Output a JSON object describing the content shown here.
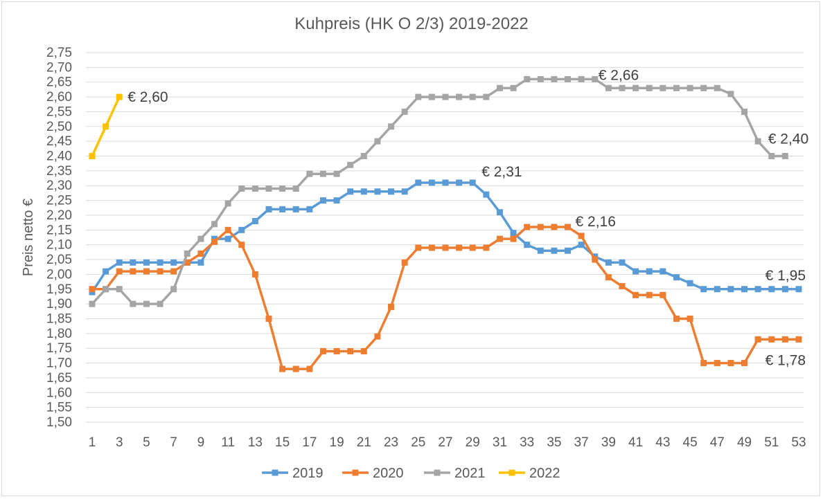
{
  "chart_data": {
    "type": "line",
    "title": "Kuhpreis (HK O 2/3) 2019-2022",
    "xlabel": "",
    "ylabel": "Preis netto €",
    "xlim": [
      1,
      53
    ],
    "ylim": [
      1.5,
      2.75
    ],
    "x_tick_labels": [
      "1",
      "3",
      "5",
      "7",
      "9",
      "11",
      "13",
      "15",
      "17",
      "19",
      "21",
      "23",
      "25",
      "27",
      "29",
      "31",
      "33",
      "35",
      "37",
      "39",
      "41",
      "43",
      "45",
      "47",
      "49",
      "51",
      "53"
    ],
    "y_tick_labels": [
      "1,50",
      "1,55",
      "1,60",
      "1,65",
      "1,70",
      "1,75",
      "1,80",
      "1,85",
      "1,90",
      "1,95",
      "2,00",
      "2,05",
      "2,10",
      "2,15",
      "2,20",
      "2,25",
      "2,30",
      "2,35",
      "2,40",
      "2,45",
      "2,50",
      "2,55",
      "2,60",
      "2,65",
      "2,70",
      "2,75"
    ],
    "grid": true,
    "legend_position": "bottom",
    "series": [
      {
        "name": "2019",
        "color": "#5B9BD5",
        "x": [
          1,
          2,
          3,
          4,
          5,
          6,
          7,
          8,
          9,
          10,
          11,
          12,
          13,
          14,
          15,
          16,
          17,
          18,
          19,
          20,
          21,
          22,
          23,
          24,
          25,
          26,
          27,
          28,
          29,
          30,
          31,
          32,
          33,
          34,
          35,
          36,
          37,
          38,
          39,
          40,
          41,
          42,
          43,
          44,
          45,
          46,
          47,
          48,
          49,
          50,
          51,
          52,
          53
        ],
        "values": [
          1.94,
          2.01,
          2.04,
          2.04,
          2.04,
          2.04,
          2.04,
          2.04,
          2.04,
          2.12,
          2.12,
          2.15,
          2.18,
          2.22,
          2.22,
          2.22,
          2.22,
          2.25,
          2.25,
          2.28,
          2.28,
          2.28,
          2.28,
          2.28,
          2.31,
          2.31,
          2.31,
          2.31,
          2.31,
          2.27,
          2.21,
          2.14,
          2.1,
          2.08,
          2.08,
          2.08,
          2.1,
          2.06,
          2.04,
          2.04,
          2.01,
          2.01,
          2.01,
          1.99,
          1.97,
          1.95,
          1.95,
          1.95,
          1.95,
          1.95,
          1.95,
          1.95,
          1.95
        ]
      },
      {
        "name": "2020",
        "color": "#ED7D31",
        "x": [
          1,
          2,
          3,
          4,
          5,
          6,
          7,
          8,
          9,
          10,
          11,
          12,
          13,
          14,
          15,
          16,
          17,
          18,
          19,
          20,
          21,
          22,
          23,
          24,
          25,
          26,
          27,
          28,
          29,
          30,
          31,
          32,
          33,
          34,
          35,
          36,
          37,
          38,
          39,
          40,
          41,
          42,
          43,
          44,
          45,
          46,
          47,
          48,
          49,
          50,
          51,
          52,
          53
        ],
        "values": [
          1.95,
          1.95,
          2.01,
          2.01,
          2.01,
          2.01,
          2.01,
          2.04,
          2.07,
          2.11,
          2.15,
          2.1,
          2.0,
          1.85,
          1.68,
          1.68,
          1.68,
          1.74,
          1.74,
          1.74,
          1.74,
          1.79,
          1.89,
          2.04,
          2.09,
          2.09,
          2.09,
          2.09,
          2.09,
          2.09,
          2.12,
          2.12,
          2.16,
          2.16,
          2.16,
          2.16,
          2.13,
          2.05,
          1.99,
          1.96,
          1.93,
          1.93,
          1.93,
          1.85,
          1.85,
          1.7,
          1.7,
          1.7,
          1.7,
          1.78,
          1.78,
          1.78,
          1.78
        ]
      },
      {
        "name": "2021",
        "color": "#A5A5A5",
        "x": [
          1,
          2,
          3,
          4,
          5,
          6,
          7,
          8,
          9,
          10,
          11,
          12,
          13,
          14,
          15,
          16,
          17,
          18,
          19,
          20,
          21,
          22,
          23,
          24,
          25,
          26,
          27,
          28,
          29,
          30,
          31,
          32,
          33,
          34,
          35,
          36,
          37,
          38,
          39,
          40,
          41,
          42,
          43,
          44,
          45,
          46,
          47,
          48,
          49,
          50,
          51,
          52
        ],
        "values": [
          1.9,
          1.95,
          1.95,
          1.9,
          1.9,
          1.9,
          1.95,
          2.07,
          2.12,
          2.17,
          2.24,
          2.29,
          2.29,
          2.29,
          2.29,
          2.29,
          2.34,
          2.34,
          2.34,
          2.37,
          2.4,
          2.45,
          2.5,
          2.55,
          2.6,
          2.6,
          2.6,
          2.6,
          2.6,
          2.6,
          2.63,
          2.63,
          2.66,
          2.66,
          2.66,
          2.66,
          2.66,
          2.66,
          2.63,
          2.63,
          2.63,
          2.63,
          2.63,
          2.63,
          2.63,
          2.63,
          2.63,
          2.61,
          2.55,
          2.45,
          2.4,
          2.4
        ]
      },
      {
        "name": "2022",
        "color": "#FFC000",
        "x": [
          1,
          2,
          3
        ],
        "values": [
          2.4,
          2.5,
          2.6
        ]
      }
    ],
    "annotations": [
      {
        "text": "€ 2,60",
        "series": "2022",
        "x": 3,
        "y": 2.6
      },
      {
        "text": "€ 2,66",
        "series": "2021",
        "x": 38,
        "y": 2.66
      },
      {
        "text": "€ 2,40",
        "series": "2021",
        "x": 51,
        "y": 2.4
      },
      {
        "text": "€ 2,31",
        "series": "2019",
        "x": 29,
        "y": 2.31
      },
      {
        "text": "€ 2,16",
        "series": "2020",
        "x": 36,
        "y": 2.16
      },
      {
        "text": "€ 1,95",
        "series": "2019",
        "x": 53,
        "y": 1.95
      },
      {
        "text": "€ 1,78",
        "series": "2020",
        "x": 53,
        "y": 1.78
      }
    ]
  }
}
